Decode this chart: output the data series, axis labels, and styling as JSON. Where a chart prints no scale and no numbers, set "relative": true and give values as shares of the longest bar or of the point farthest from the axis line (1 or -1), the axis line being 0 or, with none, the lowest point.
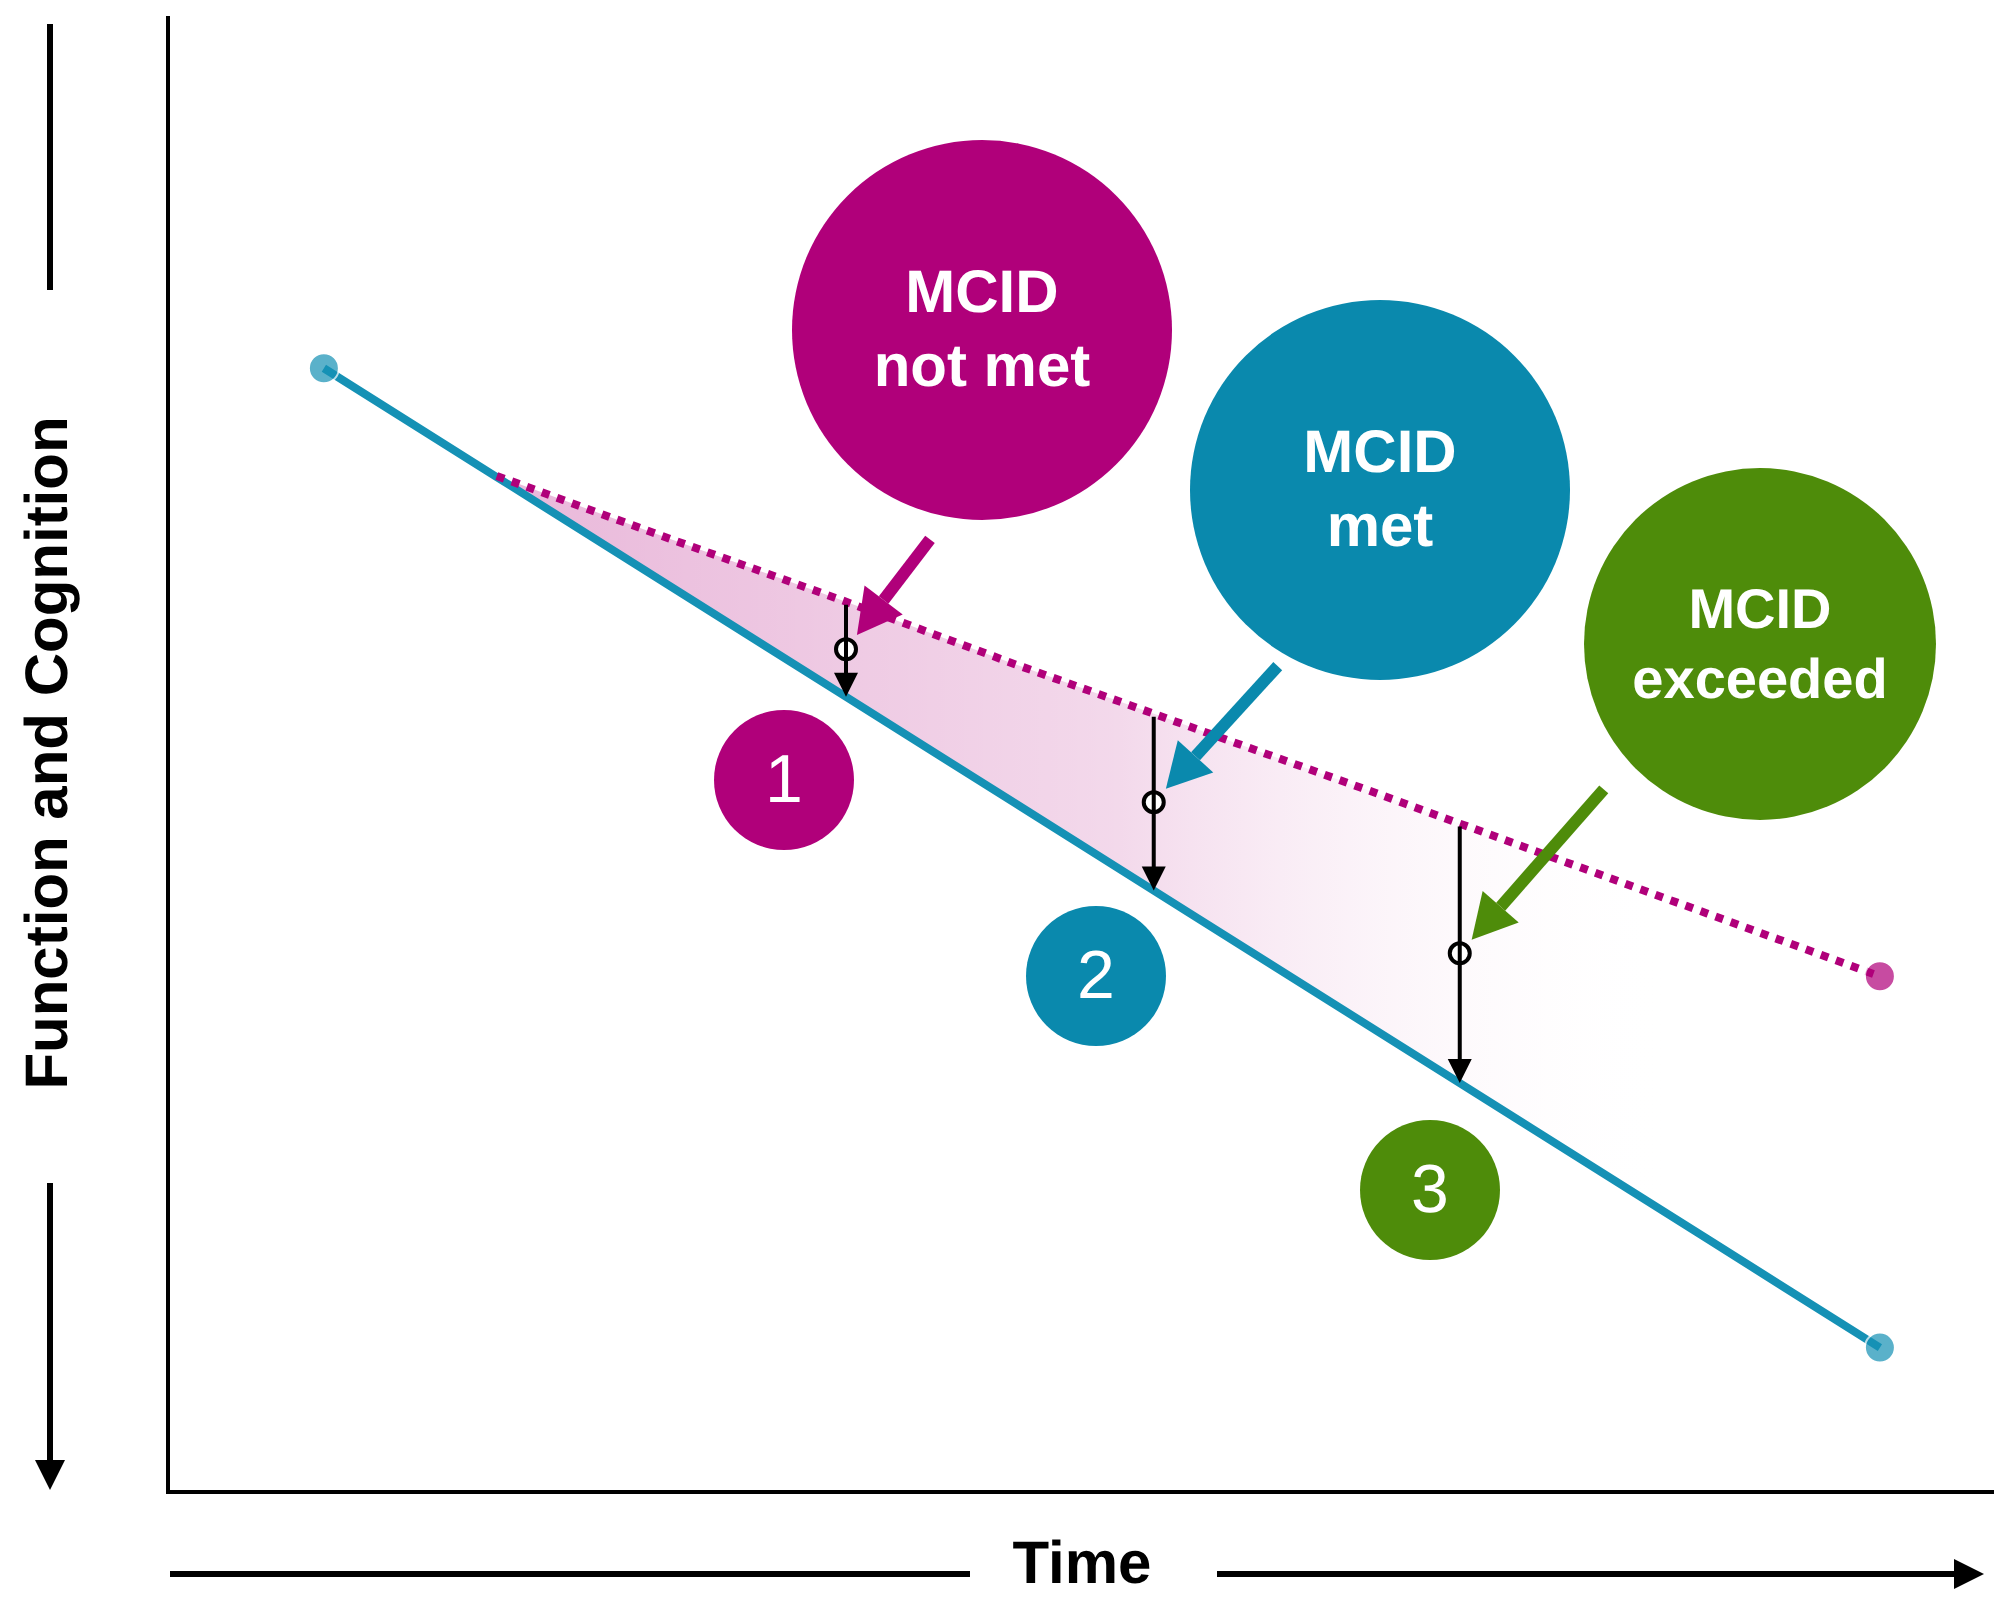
{
  "chart_data": {
    "type": "line",
    "relative": true,
    "xlabel": "Time",
    "ylabel": "Function and Cognition",
    "grid": false,
    "categories": [
      null,
      null,
      null,
      null,
      null,
      null,
      null,
      null,
      null,
      null
    ],
    "series": [
      {
        "color": "#1591b5",
        "line_style": "solid",
        "values": [
          1,
          0.903,
          0.806,
          0.709,
          0.612,
          0.515,
          0.418,
          0.321,
          0.224,
          0.127
        ]
      },
      {
        "color": "#b0007a",
        "line_style": "dotted",
        "values": [
          null,
          0.904,
          0.848,
          0.793,
          0.736,
          0.681,
          0.626,
          0.57,
          0.514,
          0.458
        ],
        "lower": [
          null,
          0.903,
          0.806,
          0.709,
          0.612,
          0.515,
          0.418,
          0.321,
          0.224,
          0.127
        ],
        "upper": [
          null,
          0.904,
          0.848,
          0.793,
          0.736,
          0.681,
          0.626,
          0.57,
          0.514,
          0.458
        ]
      }
    ],
    "annotations": [
      "MCID\nnot met",
      "MCID\nmet",
      "MCID\nexceeded",
      "1",
      "2",
      "3"
    ]
  }
}
